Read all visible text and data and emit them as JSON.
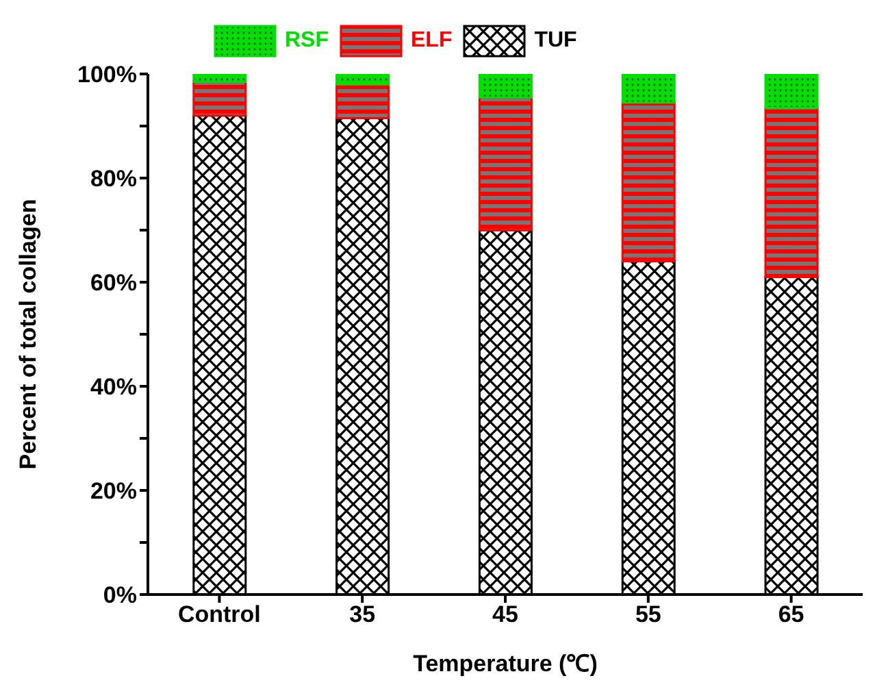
{
  "chart_data": {
    "type": "bar",
    "stacked": true,
    "xlabel": "Temperature (℃)",
    "ylabel": "Percent of total collagen",
    "categories": [
      "Control",
      "35",
      "45",
      "55",
      "65"
    ],
    "series": [
      {
        "name": "TUF",
        "color": "#000000",
        "values": [
          92,
          91.5,
          70,
          64,
          61
        ]
      },
      {
        "name": "ELF",
        "color": "#ff0000",
        "values": [
          6.5,
          6.5,
          25.5,
          30.5,
          32.5
        ]
      },
      {
        "name": "RSF",
        "color": "#00e000",
        "values": [
          1.5,
          2,
          4.5,
          5.5,
          6.5
        ]
      }
    ],
    "ylim": [
      0,
      100
    ],
    "yticks": [
      {
        "value": 0,
        "label": "0%"
      },
      {
        "value": 10,
        "label": null
      },
      {
        "value": 20,
        "label": "20%"
      },
      {
        "value": 30,
        "label": null
      },
      {
        "value": 40,
        "label": "40%"
      },
      {
        "value": 50,
        "label": null
      },
      {
        "value": 60,
        "label": "60%"
      },
      {
        "value": 70,
        "label": null
      },
      {
        "value": 80,
        "label": "80%"
      },
      {
        "value": 90,
        "label": null
      },
      {
        "value": 100,
        "label": "100%"
      }
    ],
    "grid": false,
    "legend": "top left"
  }
}
